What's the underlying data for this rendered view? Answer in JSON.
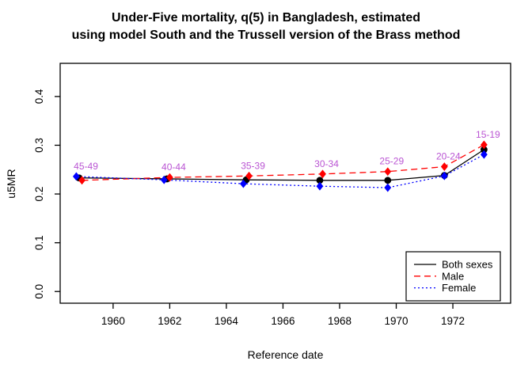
{
  "title": {
    "line1": "Under-Five mortality, q(5) in Bangladesh, estimated",
    "line2": "using model South and the Trussell version of the Brass method"
  },
  "chart_data": {
    "type": "line",
    "title": "Under-Five mortality, q(5) in Bangladesh, estimated using model South and the Trussell version of the Brass method",
    "xlabel": "Reference date",
    "ylabel": "u5MR",
    "xlim": [
      1958.13,
      1974.04
    ],
    "ylim": [
      -0.024,
      0.468
    ],
    "x_ticks": [
      1960,
      1962,
      1964,
      1966,
      1968,
      1970,
      1972
    ],
    "y_ticks": [
      0.0,
      0.1,
      0.2,
      0.3,
      0.4
    ],
    "grid": false,
    "legend_position": "bottom-right",
    "annotation_color": "#BA55D3",
    "age_group_labels": [
      "45-49",
      "40-44",
      "35-39",
      "30-34",
      "25-29",
      "20-24",
      "15-19"
    ],
    "series": [
      {
        "name": "Both sexes",
        "color": "#000000",
        "line_style": "solid",
        "marker": "circle",
        "x": [
          1958.8,
          1961.9,
          1964.7,
          1967.3,
          1969.7,
          1971.7,
          1973.1
        ],
        "y": [
          0.233,
          0.231,
          0.229,
          0.228,
          0.228,
          0.238,
          0.291
        ]
      },
      {
        "name": "Male",
        "color": "#FF0000",
        "line_style": "dashed",
        "marker": "diamond",
        "x": [
          1958.9,
          1962.0,
          1964.8,
          1967.4,
          1969.7,
          1971.7,
          1973.1
        ],
        "y": [
          0.228,
          0.234,
          0.237,
          0.241,
          0.246,
          0.256,
          0.301
        ]
      },
      {
        "name": "Female",
        "color": "#0000FF",
        "line_style": "dotted",
        "marker": "diamond",
        "x": [
          1958.7,
          1961.8,
          1964.6,
          1967.3,
          1969.7,
          1971.7,
          1973.1
        ],
        "y": [
          0.236,
          0.229,
          0.221,
          0.216,
          0.213,
          0.237,
          0.281
        ]
      }
    ]
  }
}
